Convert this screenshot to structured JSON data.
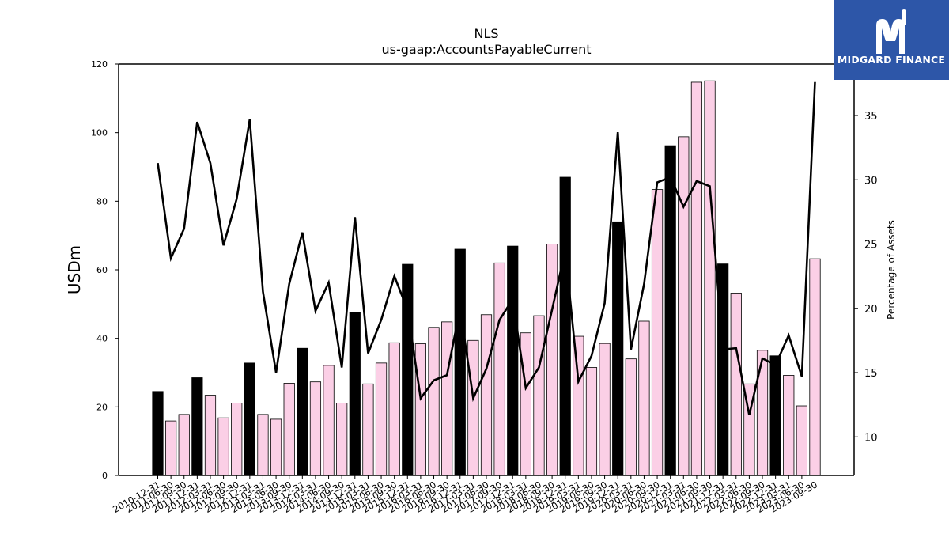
{
  "chart_data": {
    "type": "bar",
    "title": "NLS",
    "subtitle": "us-gaap:AccountsPayableCurrent",
    "ylabel": "USDm",
    "y2label": "Percentage of Assets",
    "ylim": [
      0,
      120
    ],
    "y2lim": [
      7,
      39
    ],
    "yticks": [
      0,
      20,
      40,
      60,
      80,
      100,
      120
    ],
    "y2ticks": [
      10,
      15,
      20,
      25,
      30,
      35
    ],
    "grid": false,
    "categories": [
      "2010-12-31",
      "2011-06-30",
      "2011-09-30",
      "2011-12-31",
      "2012-03-31",
      "2012-06-30",
      "2012-09-30",
      "2012-12-31",
      "2013-03-31",
      "2013-06-30",
      "2013-09-30",
      "2013-12-31",
      "2014-03-31",
      "2014-06-30",
      "2014-09-30",
      "2014-12-31",
      "2015-03-31",
      "2015-06-30",
      "2015-09-30",
      "2015-12-31",
      "2016-03-31",
      "2016-06-30",
      "2016-09-30",
      "2016-12-31",
      "2017-03-31",
      "2017-06-30",
      "2017-09-30",
      "2017-12-31",
      "2018-03-31",
      "2018-06-30",
      "2018-09-30",
      "2018-12-31",
      "2019-03-31",
      "2019-06-30",
      "2019-09-30",
      "2019-12-31",
      "2020-03-31",
      "2020-06-30",
      "2020-09-30",
      "2020-12-31",
      "2021-03-31",
      "2021-06-30",
      "2021-09-30",
      "2021-12-31",
      "2022-03-31",
      "2022-06-30",
      "2022-09-30",
      "2022-12-31",
      "2023-03-31",
      "2023-06-30",
      "2023-09-30"
    ],
    "series": [
      {
        "type": "bar",
        "axis": "left",
        "values": [
          24.5,
          15.9,
          17.8,
          28.5,
          23.4,
          16.8,
          21.1,
          32.8,
          17.8,
          16.4,
          26.9,
          37.1,
          27.3,
          32.1,
          21.1,
          47.6,
          26.7,
          32.8,
          38.7,
          61.6,
          38.4,
          43.2,
          44.8,
          66.0,
          39.4,
          46.9,
          62.0,
          66.9,
          41.6,
          46.6,
          67.5,
          87.0,
          40.6,
          31.5,
          38.5,
          74.0,
          34.0,
          45.0,
          83.4,
          96.2,
          98.8,
          114.7,
          115.1,
          61.7,
          53.2,
          26.7,
          36.5,
          34.9,
          29.2,
          20.3,
          63.2
        ]
      },
      {
        "type": "line",
        "axis": "right",
        "values": [
          31.3,
          23.9,
          26.2,
          34.5,
          31.3,
          24.9,
          28.5,
          34.7,
          21.3,
          15.0,
          21.9,
          25.9,
          19.8,
          22.0,
          15.4,
          27.1,
          16.5,
          19.1,
          22.5,
          19.9,
          13.0,
          14.4,
          14.8,
          20.0,
          13.0,
          15.3,
          19.1,
          20.7,
          13.8,
          15.4,
          19.9,
          24.5,
          14.3,
          16.3,
          20.4,
          33.7,
          16.8,
          21.9,
          29.8,
          30.2,
          27.9,
          29.9,
          29.5,
          16.8,
          16.9,
          11.7,
          16.1,
          15.6,
          17.9,
          14.7,
          37.6
        ]
      }
    ],
    "bar_colors": {
      "highlight": "#000000",
      "normal": "#fbcfe6",
      "edge": "#000000"
    },
    "line_color": "#000000"
  },
  "logo": {
    "text": "MIDGARD FINANCE",
    "background": "#2d56a8"
  }
}
